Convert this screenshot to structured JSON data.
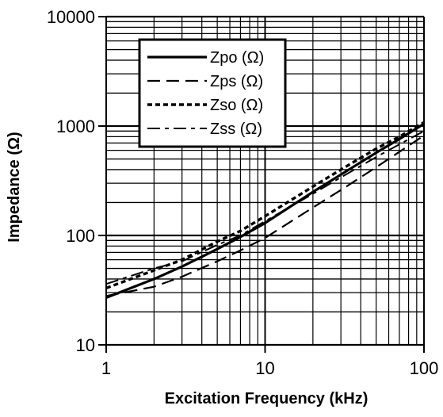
{
  "chart_data": {
    "type": "line",
    "title": "",
    "xlabel": "Excitation Frequency (kHz)",
    "ylabel": "Impedance (Ω)",
    "x_scale": "log",
    "y_scale": "log",
    "xlim": [
      1,
      100
    ],
    "ylim": [
      10,
      10000
    ],
    "grid": true,
    "legend_position": "top-left",
    "x_ticks": [
      "1",
      "10",
      "100"
    ],
    "y_ticks": [
      "10",
      "100",
      "1000",
      "10000"
    ],
    "series": [
      {
        "name": "Zpo (Ω)",
        "style": "solid",
        "x": [
          1,
          2,
          3,
          5,
          7,
          10,
          20,
          30,
          50,
          70,
          100
        ],
        "y": [
          27,
          40,
          52,
          75,
          97,
          130,
          250,
          360,
          570,
          760,
          1050
        ]
      },
      {
        "name": "Zps (Ω)",
        "style": "dashed",
        "x": [
          1,
          2,
          3,
          5,
          7,
          10,
          20,
          30,
          50,
          70,
          100
        ],
        "y": [
          28,
          34,
          42,
          58,
          73,
          95,
          180,
          260,
          420,
          580,
          820
        ]
      },
      {
        "name": "Zso (Ω)",
        "style": "dotted",
        "x": [
          1,
          2,
          3,
          5,
          7,
          10,
          20,
          30,
          50,
          70,
          100
        ],
        "y": [
          33,
          48,
          60,
          88,
          110,
          150,
          280,
          400,
          620,
          800,
          1080
        ]
      },
      {
        "name": "Zss (Ω)",
        "style": "dashdot",
        "x": [
          1,
          2,
          3,
          5,
          7,
          10,
          20,
          30,
          50,
          70,
          100
        ],
        "y": [
          36,
          50,
          58,
          82,
          100,
          135,
          240,
          340,
          520,
          680,
          900
        ]
      }
    ]
  }
}
